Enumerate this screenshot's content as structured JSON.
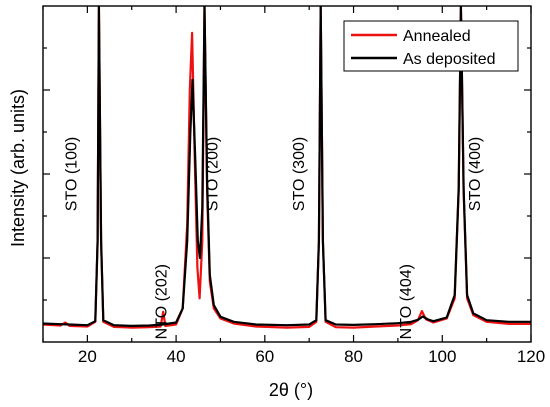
{
  "chart_data": {
    "type": "line",
    "xlabel": "2θ (°)",
    "ylabel": "Intensity (arb. units)",
    "xlim": [
      10,
      120
    ],
    "x_ticks": [
      20,
      40,
      60,
      80,
      100,
      120
    ],
    "ylim": [
      0,
      100
    ],
    "y_ticks_labeled": false,
    "grid": false,
    "legend_position": "top-right",
    "series": [
      {
        "name": "Annealed",
        "color": "#ee1111",
        "points": [
          [
            10,
            5.2
          ],
          [
            14,
            4.9
          ],
          [
            15,
            5.8
          ],
          [
            16,
            4.8
          ],
          [
            20,
            4.6
          ],
          [
            21.8,
            6
          ],
          [
            22.3,
            30
          ],
          [
            22.6,
            100
          ],
          [
            23.1,
            30
          ],
          [
            23.6,
            6
          ],
          [
            26,
            4.5
          ],
          [
            30,
            4.3
          ],
          [
            34,
            4.4
          ],
          [
            36.5,
            4.6
          ],
          [
            37.1,
            9
          ],
          [
            37.6,
            4.8
          ],
          [
            40,
            5.2
          ],
          [
            41.5,
            10
          ],
          [
            42.5,
            35
          ],
          [
            43.1,
            75
          ],
          [
            43.6,
            92
          ],
          [
            44.2,
            55
          ],
          [
            44.8,
            22
          ],
          [
            45.3,
            13
          ],
          [
            45.9,
            30
          ],
          [
            46.4,
            100
          ],
          [
            47,
            45
          ],
          [
            47.6,
            18
          ],
          [
            48.5,
            10
          ],
          [
            50,
            7
          ],
          [
            53,
            5.5
          ],
          [
            58,
            4.6
          ],
          [
            65,
            4.3
          ],
          [
            70,
            4.5
          ],
          [
            71.6,
            6
          ],
          [
            72.2,
            30
          ],
          [
            72.6,
            100
          ],
          [
            73.1,
            30
          ],
          [
            73.7,
            6
          ],
          [
            76,
            4.4
          ],
          [
            80,
            4.3
          ],
          [
            85,
            4.6
          ],
          [
            90,
            4.9
          ],
          [
            93,
            5.3
          ],
          [
            94.5,
            6.5
          ],
          [
            95.4,
            9.2
          ],
          [
            96.3,
            6.8
          ],
          [
            98,
            5.8
          ],
          [
            101,
            7
          ],
          [
            102.8,
            13
          ],
          [
            103.7,
            45
          ],
          [
            104.2,
            100
          ],
          [
            104.8,
            45
          ],
          [
            105.6,
            13
          ],
          [
            107,
            8
          ],
          [
            110,
            6
          ],
          [
            115,
            5.4
          ],
          [
            120,
            5.4
          ]
        ]
      },
      {
        "name": "As deposited",
        "color": "#000000",
        "points": [
          [
            10,
            5.5
          ],
          [
            14,
            5.3
          ],
          [
            16,
            5.2
          ],
          [
            20,
            5.0
          ],
          [
            21.8,
            6.2
          ],
          [
            22.3,
            30
          ],
          [
            22.6,
            100
          ],
          [
            23.1,
            30
          ],
          [
            23.6,
            6.5
          ],
          [
            26,
            5.0
          ],
          [
            30,
            4.8
          ],
          [
            34,
            4.9
          ],
          [
            37,
            5.2
          ],
          [
            40,
            5.8
          ],
          [
            41.5,
            10
          ],
          [
            42.5,
            30
          ],
          [
            43.2,
            62
          ],
          [
            43.7,
            78
          ],
          [
            44.3,
            55
          ],
          [
            44.9,
            30
          ],
          [
            45.4,
            25
          ],
          [
            45.9,
            40
          ],
          [
            46.4,
            100
          ],
          [
            47,
            48
          ],
          [
            47.6,
            20
          ],
          [
            48.5,
            11
          ],
          [
            50,
            7.5
          ],
          [
            53,
            6
          ],
          [
            58,
            5.2
          ],
          [
            65,
            5.0
          ],
          [
            70,
            5.2
          ],
          [
            71.6,
            6.5
          ],
          [
            72.2,
            30
          ],
          [
            72.6,
            100
          ],
          [
            73.1,
            30
          ],
          [
            73.7,
            6.5
          ],
          [
            76,
            5.2
          ],
          [
            80,
            5.1
          ],
          [
            85,
            5.3
          ],
          [
            90,
            5.6
          ],
          [
            93,
            6.0
          ],
          [
            94.5,
            6.6
          ],
          [
            95.6,
            7.6
          ],
          [
            96.8,
            6.7
          ],
          [
            98,
            6.2
          ],
          [
            101,
            7.3
          ],
          [
            102.8,
            14
          ],
          [
            103.7,
            46
          ],
          [
            104.2,
            100
          ],
          [
            104.8,
            46
          ],
          [
            105.6,
            14
          ],
          [
            107,
            8.5
          ],
          [
            110,
            6.5
          ],
          [
            115,
            6.0
          ],
          [
            120,
            6.0
          ]
        ]
      }
    ],
    "annotations": [
      {
        "text": "STO (100)",
        "x": 17.5,
        "y": 50
      },
      {
        "text": "NTO (202)",
        "x": 37.8,
        "y": 12
      },
      {
        "text": "STO (200)",
        "x": 49.3,
        "y": 50
      },
      {
        "text": "STO (300)",
        "x": 68.8,
        "y": 50
      },
      {
        "text": "NTO (404)",
        "x": 93.0,
        "y": 12
      },
      {
        "text": "STO (400)",
        "x": 108.5,
        "y": 50
      }
    ]
  }
}
